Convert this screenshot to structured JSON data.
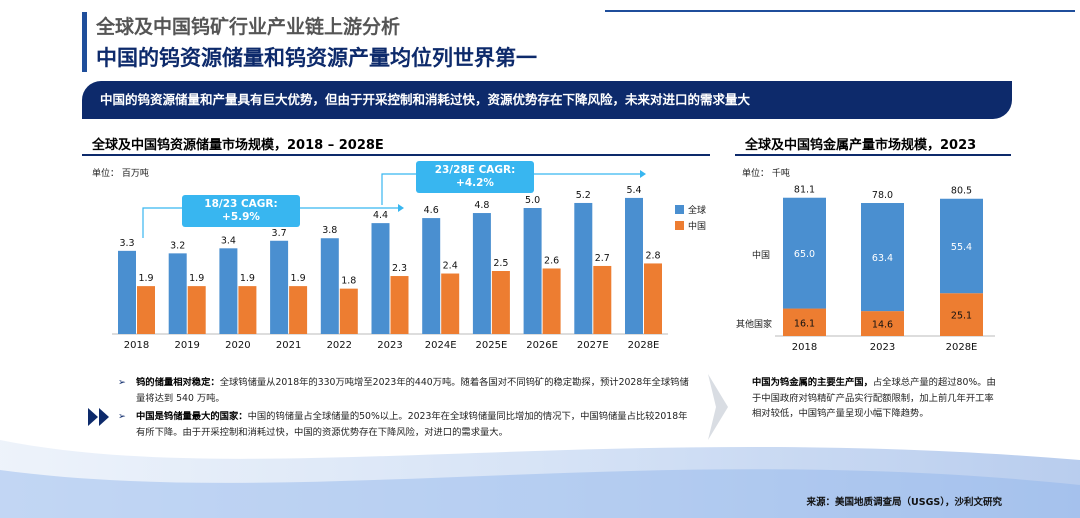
{
  "header": {
    "title": "全球及中国钨矿行业产业链上游分析",
    "subtitle": "中国的钨资源储量和钨资源产量均位列世界第一"
  },
  "banner": "中国的钨资源储量和产量具有巨大优势，但由于开采控制和消耗过快，资源优势存在下降风险，未来对进口的需求量大",
  "colors": {
    "global": "#4a8fd0",
    "china": "#ed7d31",
    "navy": "#0d2a6b",
    "cagr": "#38b6f0"
  },
  "left_chart": {
    "title": "全球及中国钨资源储量市场规模，2018 – 2028E",
    "unit": "单位： 百万吨",
    "cagr1": {
      "label": "18/23 CAGR:",
      "value": "+5.9%"
    },
    "cagr2": {
      "label": "23/28E CAGR:",
      "value": "+4.2%"
    },
    "legend": [
      "全球",
      "中国"
    ]
  },
  "right_chart": {
    "title": "全球及中国钨金属产量市场规模，2023",
    "unit": "单位： 千吨",
    "row_labels": [
      "中国",
      "其他国家"
    ]
  },
  "chart_data": [
    {
      "type": "bar",
      "title": "全球及中国钨资源储量市场规模，2018 – 2028E",
      "categories": [
        "2018",
        "2019",
        "2020",
        "2021",
        "2022",
        "2023",
        "2024E",
        "2025E",
        "2026E",
        "2027E",
        "2028E"
      ],
      "series": [
        {
          "name": "全球",
          "values": [
            3.3,
            3.2,
            3.4,
            3.7,
            3.8,
            4.4,
            4.6,
            4.8,
            5.0,
            5.2,
            5.4
          ]
        },
        {
          "name": "中国",
          "values": [
            1.9,
            1.9,
            1.9,
            1.9,
            1.8,
            2.3,
            2.4,
            2.5,
            2.6,
            2.7,
            2.8
          ]
        }
      ],
      "value_labels": {
        "全球": [
          "3.3",
          "3.2",
          "3.4",
          "3.7",
          "3.8",
          "4.4",
          "4.6",
          "4.8",
          "5.0",
          "5.2",
          "5.4"
        ],
        "中国": [
          "1.9",
          "1.9",
          "1.9",
          "1.9",
          "1.8",
          "2.3",
          "2.4",
          "2.5",
          "2.6",
          "2.7",
          "2.8"
        ]
      },
      "ylim": [
        0,
        6
      ],
      "legend_position": "right"
    },
    {
      "type": "bar",
      "stacked": true,
      "title": "全球及中国钨金属产量市场规模，2023",
      "categories": [
        "2018",
        "2023",
        "2028E"
      ],
      "series": [
        {
          "name": "中国",
          "values": [
            65.0,
            63.4,
            55.4
          ]
        },
        {
          "name": "其他国家",
          "values": [
            16.1,
            14.6,
            25.1
          ]
        }
      ],
      "totals": [
        81.1,
        78.0,
        80.5
      ],
      "value_labels": {
        "中国": [
          "65.0",
          "63.4",
          "55.4"
        ],
        "其他国家": [
          "16.1",
          "14.6",
          "25.1"
        ],
        "totals": [
          "81.1",
          "78.0",
          "80.5"
        ]
      },
      "ylim": [
        0,
        90
      ]
    }
  ],
  "bullets": [
    {
      "heading": "钨的储量相对稳定：",
      "text": "全球钨储量从2018年的330万吨增至2023年的440万吨。随着各国对不同钨矿的稳定勘探，预计2028年全球钨储量将达到 540 万吨。"
    },
    {
      "heading": "中国是钨储量最大的国家：",
      "text": "中国的钨储量占全球储量的50%以上。2023年在全球钨储量同比增加的情况下，中国钨储量占比较2018年有所下降。由于开采控制和消耗过快，中国的资源优势存在下降风险，对进口的需求量大。"
    }
  ],
  "right_note": {
    "heading": "中国为钨金属的主要生产国，",
    "text": "占全球总产量的超过80%。由于中国政府对钨精矿产品实行配额限制，加上前几年开工率相对较低，中国钨产量呈现小幅下降趋势。"
  },
  "source": "来源：美国地质调查局（USGS），沙利文研究"
}
